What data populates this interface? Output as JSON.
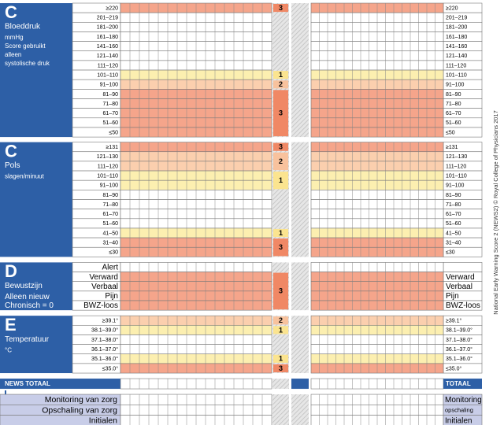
{
  "sections": [
    {
      "letter": "C",
      "title": "Bloeddruk",
      "lines": [
        "mmHg",
        "Score gebruikt",
        "alleen",
        "systolische druk"
      ],
      "rows": [
        {
          "label": "≥220",
          "right_label": "≥220",
          "score": 3
        },
        {
          "label": "201–219",
          "right_label": "201–219"
        },
        {
          "label": "181–200",
          "right_label": "181–200"
        },
        {
          "label": "161–180",
          "right_label": "161–180"
        },
        {
          "label": "141–160",
          "right_label": "141–160"
        },
        {
          "label": "121–140",
          "right_label": "121–140"
        },
        {
          "label": "111–120",
          "right_label": "111–120"
        },
        {
          "label": "101–110",
          "right_label": "101–110",
          "score": 1
        },
        {
          "label": "91–100",
          "right_label": "91–100",
          "score": 2
        },
        {
          "label": "81–90",
          "right_label": "81–90",
          "score": 3
        },
        {
          "label": "71–80",
          "right_label": "71–80",
          "score": 3
        },
        {
          "label": "61–70",
          "right_label": "61–70",
          "score": 3
        },
        {
          "label": "51–60",
          "right_label": "51–60",
          "score": 3
        },
        {
          "label": "≤50",
          "right_label": "≤50",
          "score": 3
        }
      ]
    },
    {
      "letter": "C",
      "title": "Pols",
      "lines": [
        "slagen/minuut"
      ],
      "rows": [
        {
          "label": "≥131",
          "right_label": "≥131",
          "score": 3
        },
        {
          "label": "121–130",
          "right_label": "121–130",
          "score": 2
        },
        {
          "label": "111–120",
          "right_label": "111–120",
          "score": 2
        },
        {
          "label": "101–110",
          "right_label": "101–110",
          "score": 1
        },
        {
          "label": "91–100",
          "right_label": "91–100",
          "score": 1
        },
        {
          "label": "81–90",
          "right_label": "81–90"
        },
        {
          "label": "71–80",
          "right_label": "71–80"
        },
        {
          "label": "61–70",
          "right_label": "61–70"
        },
        {
          "label": "51–60",
          "right_label": "51–60"
        },
        {
          "label": "41–50",
          "right_label": "41–50",
          "score": 1
        },
        {
          "label": "31–40",
          "right_label": "31–40",
          "score": 3
        },
        {
          "label": "≤30",
          "right_label": "≤30",
          "score": 3
        }
      ]
    },
    {
      "letter": "D",
      "title": "Bewustzijn",
      "lines": [
        "Alleen nieuw",
        "Chronisch = 0"
      ],
      "large": true,
      "rows": [
        {
          "label": "Alert"
        },
        {
          "label": "Verward",
          "right_label": "Verward",
          "score": 3
        },
        {
          "label": "Verbaal",
          "right_label": "Verbaal",
          "score": 3
        },
        {
          "label": "Pijn",
          "right_label": "Pijn",
          "score": 3
        },
        {
          "label": "BWZ-loos",
          "right_label": "BWZ-loos",
          "score": 3
        }
      ]
    },
    {
      "letter": "E",
      "title": "Temperatuur",
      "lines": [
        "°C"
      ],
      "rows": [
        {
          "label": "≥39.1°",
          "right_label": "≥39.1°",
          "score": 2
        },
        {
          "label": "38.1–39.0°",
          "right_label": "38.1–39.0°",
          "score": 1
        },
        {
          "label": "37.1–38.0°",
          "right_label": "37.1–38.0°"
        },
        {
          "label": "36.1–37.0°",
          "right_label": "36.1–37.0°"
        },
        {
          "label": "35.1–36.0°",
          "right_label": "35.1–36.0°",
          "score": 1
        },
        {
          "label": "≤35.0°",
          "right_label": "≤35.0°",
          "score": 3
        }
      ]
    }
  ],
  "total": {
    "label": "NEWS TOTAAL",
    "right_label": "TOTAAL"
  },
  "footer_rows": [
    {
      "label": "Monitoring van zorg",
      "right_label": "Monitoring"
    },
    {
      "label": "Opschaling van zorg",
      "right_label": "opschaling"
    },
    {
      "label": "Initialen",
      "right_label": "Initialen"
    }
  ],
  "side_note": "National Early Warning Score 2 (NEWS2) © Royal College of Physicians 2017"
}
